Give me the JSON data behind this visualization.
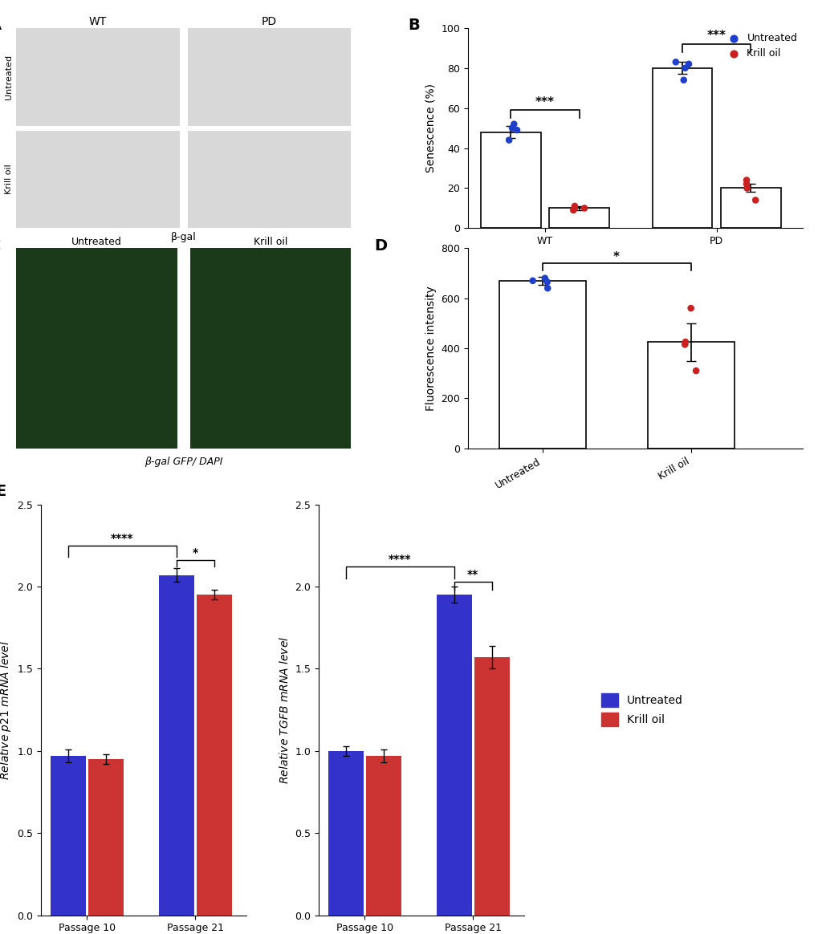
{
  "panel_B": {
    "title": "B",
    "ylabel": "Senescence (%)",
    "ylim": [
      0,
      100
    ],
    "yticks": [
      0,
      20,
      40,
      60,
      80,
      100
    ],
    "groups": [
      "WT",
      "PD"
    ],
    "bar_means": [
      48,
      10,
      80,
      20
    ],
    "bar_errors": [
      3,
      1,
      3,
      2
    ],
    "bar_colors": [
      "white",
      "white",
      "white",
      "white"
    ],
    "dot_colors": [
      "#2040cc",
      "#cc2020",
      "#2040cc",
      "#cc2020"
    ],
    "untreated_dots_WT": [
      44,
      49,
      52,
      50
    ],
    "krilloil_dots_WT": [
      10,
      11,
      9,
      10
    ],
    "untreated_dots_PD": [
      74,
      80,
      83,
      82
    ],
    "krilloil_dots_PD": [
      14,
      20,
      24,
      22
    ],
    "legend_labels": [
      "Untreated",
      "Krill oil"
    ],
    "legend_colors": [
      "#2040cc",
      "#cc2020"
    ],
    "sig_text_1": "***",
    "sig_text_2": "***",
    "xlabel_groups": [
      "WT",
      "PD"
    ]
  },
  "panel_D": {
    "title": "D",
    "ylabel": "Fluorescence intensity",
    "ylim": [
      0,
      800
    ],
    "yticks": [
      0,
      200,
      400,
      600,
      800
    ],
    "bar_means": [
      670,
      425
    ],
    "bar_errors": [
      15,
      75
    ],
    "bar_colors": [
      "white",
      "white"
    ],
    "untreated_dots": [
      640,
      670,
      680,
      665
    ],
    "krilloil_dots": [
      560,
      425,
      415,
      310
    ],
    "dot_colors_blue": "#2040cc",
    "dot_colors_red": "#cc2020",
    "xlabels": [
      "Untreated",
      "Krill oil"
    ],
    "sig_text": "*"
  },
  "panel_E_p21": {
    "title": "E",
    "ylabel": "Relative p21 mRNA level",
    "ylim": [
      0,
      2.5
    ],
    "yticks": [
      0.0,
      0.5,
      1.0,
      1.5,
      2.0,
      2.5
    ],
    "groups": [
      "Passage 10",
      "Passage 21"
    ],
    "untreated_means": [
      0.97,
      2.07
    ],
    "untreated_errors": [
      0.04,
      0.04
    ],
    "krilloil_means": [
      0.95,
      1.95
    ],
    "krilloil_errors": [
      0.03,
      0.03
    ],
    "bar_colors_blue": "#3333cc",
    "bar_colors_red": "#cc3333",
    "sig_text_1": "****",
    "sig_text_2": "*"
  },
  "panel_E_tgfb": {
    "ylabel": "Relative TGFB mRNA level",
    "ylim": [
      0,
      2.5
    ],
    "yticks": [
      0.0,
      0.5,
      1.0,
      1.5,
      2.0,
      2.5
    ],
    "groups": [
      "Passage 10",
      "Passage 21"
    ],
    "untreated_means": [
      1.0,
      1.95
    ],
    "untreated_errors": [
      0.03,
      0.05
    ],
    "krilloil_means": [
      0.97,
      1.57
    ],
    "krilloil_errors": [
      0.04,
      0.07
    ],
    "bar_colors_blue": "#3333cc",
    "bar_colors_red": "#cc3333",
    "sig_text_1": "****",
    "sig_text_2": "**",
    "legend_labels": [
      "Untreated",
      "Krill oil"
    ],
    "legend_colors": [
      "#3333cc",
      "#cc3333"
    ]
  },
  "panel_labels_fontsize": 14,
  "axis_label_fontsize": 10,
  "tick_fontsize": 9,
  "dot_size": 40,
  "bar_edgecolor": "black",
  "bar_linewidth": 1.2
}
